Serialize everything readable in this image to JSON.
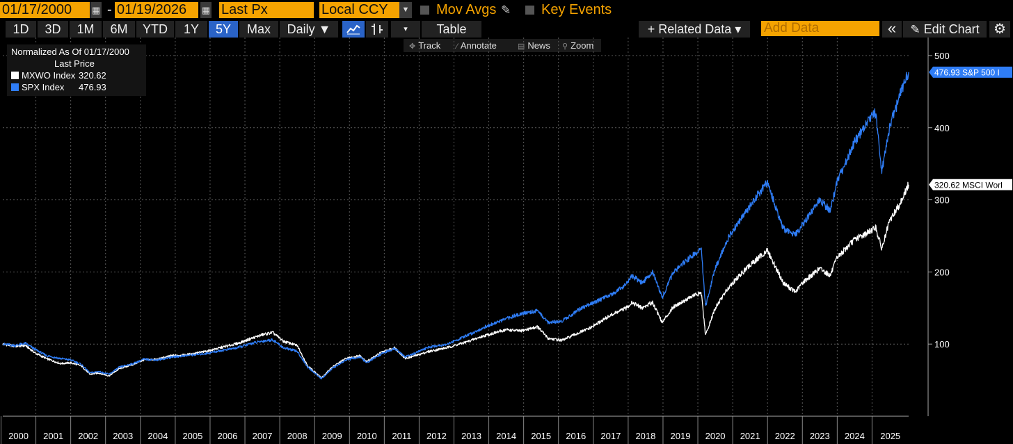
{
  "toolbar": {
    "start_date": "01/17/2000",
    "date_sep": "-",
    "end_date": "01/19/2026",
    "field": "Last Px",
    "currency": "Local CCY",
    "mov_avgs": "Mov Avgs",
    "key_events": "Key Events"
  },
  "timebar": {
    "ranges": [
      "1D",
      "3D",
      "1M",
      "6M",
      "YTD",
      "1Y",
      "5Y",
      "Max"
    ],
    "active_range": "5Y",
    "frequency": "Daily ▼",
    "table": "Table",
    "related_data": "+ Related Data ▾",
    "add_data_placeholder": "Add Data",
    "collapse": "«",
    "edit_chart": "Edit Chart"
  },
  "subtools": {
    "track": "Track",
    "annotate": "Annotate",
    "news": "News",
    "zoom": "Zoom"
  },
  "legend": {
    "line1": "Normalized As Of 01/17/2000",
    "line2": "Last Price",
    "series": [
      {
        "ticker": "MXWO Index",
        "value": "320.62",
        "color": "#ffffff"
      },
      {
        "ticker": "SPX Index",
        "value": "476.93",
        "color": "#2f7df6"
      }
    ]
  },
  "chart_data": {
    "type": "line",
    "x_unit": "year",
    "xlim": [
      2000.05,
      2026.05
    ],
    "ylim": [
      0,
      525
    ],
    "y_ticks": [
      100,
      200,
      300,
      400,
      500
    ],
    "x_tick_labels": [
      "2000",
      "2001",
      "2002",
      "2003",
      "2004",
      "2005",
      "2006",
      "2007",
      "2008",
      "2009",
      "2010",
      "2011",
      "2012",
      "2013",
      "2014",
      "2015",
      "2016",
      "2017",
      "2018",
      "2019",
      "2020",
      "2021",
      "2022",
      "2023",
      "2024",
      "2025"
    ],
    "grid": true,
    "series": [
      {
        "name": "SPX Index",
        "color": "#2f7df6",
        "last_label": "476.93 S&P 500 I",
        "points": [
          [
            2000.05,
            100
          ],
          [
            2000.4,
            98
          ],
          [
            2000.7,
            101
          ],
          [
            2001.0,
            92
          ],
          [
            2001.3,
            84
          ],
          [
            2001.7,
            80
          ],
          [
            2002.0,
            78
          ],
          [
            2002.3,
            72
          ],
          [
            2002.55,
            60
          ],
          [
            2002.8,
            62
          ],
          [
            2003.1,
            58
          ],
          [
            2003.4,
            68
          ],
          [
            2003.8,
            73
          ],
          [
            2004.1,
            79
          ],
          [
            2004.5,
            78
          ],
          [
            2004.9,
            82
          ],
          [
            2005.3,
            84
          ],
          [
            2005.9,
            87
          ],
          [
            2006.3,
            91
          ],
          [
            2006.8,
            95
          ],
          [
            2007.2,
            101
          ],
          [
            2007.5,
            104
          ],
          [
            2007.8,
            106
          ],
          [
            2008.1,
            95
          ],
          [
            2008.5,
            90
          ],
          [
            2008.8,
            68
          ],
          [
            2009.2,
            52
          ],
          [
            2009.5,
            66
          ],
          [
            2009.9,
            78
          ],
          [
            2010.3,
            82
          ],
          [
            2010.5,
            74
          ],
          [
            2010.9,
            86
          ],
          [
            2011.3,
            94
          ],
          [
            2011.6,
            82
          ],
          [
            2011.9,
            88
          ],
          [
            2012.3,
            96
          ],
          [
            2012.8,
            100
          ],
          [
            2013.3,
            110
          ],
          [
            2013.9,
            124
          ],
          [
            2014.5,
            135
          ],
          [
            2014.9,
            142
          ],
          [
            2015.4,
            146
          ],
          [
            2015.7,
            130
          ],
          [
            2016.1,
            132
          ],
          [
            2016.6,
            148
          ],
          [
            2016.9,
            155
          ],
          [
            2017.5,
            168
          ],
          [
            2017.95,
            183
          ],
          [
            2018.1,
            195
          ],
          [
            2018.4,
            185
          ],
          [
            2018.7,
            200
          ],
          [
            2018.98,
            165
          ],
          [
            2019.3,
            200
          ],
          [
            2019.9,
            225
          ],
          [
            2020.1,
            230
          ],
          [
            2020.22,
            153
          ],
          [
            2020.5,
            205
          ],
          [
            2020.9,
            250
          ],
          [
            2021.4,
            285
          ],
          [
            2021.99,
            325
          ],
          [
            2022.2,
            295
          ],
          [
            2022.45,
            260
          ],
          [
            2022.8,
            252
          ],
          [
            2023.0,
            265
          ],
          [
            2023.5,
            300
          ],
          [
            2023.8,
            285
          ],
          [
            2024.0,
            325
          ],
          [
            2024.5,
            380
          ],
          [
            2024.9,
            410
          ],
          [
            2025.1,
            420
          ],
          [
            2025.28,
            340
          ],
          [
            2025.5,
            400
          ],
          [
            2025.8,
            445
          ],
          [
            2026.05,
            477
          ]
        ]
      },
      {
        "name": "MXWO Index",
        "color": "#ffffff",
        "last_label": "320.62 MSCI Worl",
        "points": [
          [
            2000.05,
            100
          ],
          [
            2000.4,
            97
          ],
          [
            2000.7,
            98
          ],
          [
            2001.0,
            87
          ],
          [
            2001.3,
            80
          ],
          [
            2001.7,
            73
          ],
          [
            2002.0,
            74
          ],
          [
            2002.3,
            70
          ],
          [
            2002.55,
            58
          ],
          [
            2002.8,
            60
          ],
          [
            2003.1,
            56
          ],
          [
            2003.4,
            66
          ],
          [
            2003.8,
            72
          ],
          [
            2004.1,
            78
          ],
          [
            2004.5,
            79
          ],
          [
            2004.9,
            84
          ],
          [
            2005.3,
            85
          ],
          [
            2005.9,
            90
          ],
          [
            2006.3,
            95
          ],
          [
            2006.8,
            101
          ],
          [
            2007.2,
            108
          ],
          [
            2007.5,
            113
          ],
          [
            2007.8,
            116
          ],
          [
            2008.1,
            104
          ],
          [
            2008.5,
            98
          ],
          [
            2008.8,
            70
          ],
          [
            2009.2,
            53
          ],
          [
            2009.5,
            68
          ],
          [
            2009.9,
            80
          ],
          [
            2010.3,
            84
          ],
          [
            2010.5,
            76
          ],
          [
            2010.9,
            88
          ],
          [
            2011.3,
            95
          ],
          [
            2011.6,
            80
          ],
          [
            2011.9,
            84
          ],
          [
            2012.3,
            90
          ],
          [
            2012.8,
            95
          ],
          [
            2013.3,
            102
          ],
          [
            2013.9,
            112
          ],
          [
            2014.5,
            120
          ],
          [
            2014.9,
            118
          ],
          [
            2015.4,
            124
          ],
          [
            2015.7,
            108
          ],
          [
            2016.1,
            105
          ],
          [
            2016.6,
            116
          ],
          [
            2016.9,
            122
          ],
          [
            2017.5,
            140
          ],
          [
            2017.95,
            150
          ],
          [
            2018.1,
            158
          ],
          [
            2018.4,
            150
          ],
          [
            2018.7,
            158
          ],
          [
            2018.98,
            130
          ],
          [
            2019.3,
            152
          ],
          [
            2019.9,
            168
          ],
          [
            2020.1,
            170
          ],
          [
            2020.22,
            112
          ],
          [
            2020.5,
            150
          ],
          [
            2020.9,
            180
          ],
          [
            2021.4,
            205
          ],
          [
            2021.99,
            230
          ],
          [
            2022.2,
            210
          ],
          [
            2022.45,
            185
          ],
          [
            2022.8,
            172
          ],
          [
            2023.0,
            185
          ],
          [
            2023.5,
            205
          ],
          [
            2023.8,
            195
          ],
          [
            2024.0,
            220
          ],
          [
            2024.5,
            245
          ],
          [
            2024.9,
            255
          ],
          [
            2025.1,
            262
          ],
          [
            2025.28,
            232
          ],
          [
            2025.5,
            270
          ],
          [
            2025.8,
            295
          ],
          [
            2026.05,
            321
          ]
        ]
      }
    ]
  }
}
